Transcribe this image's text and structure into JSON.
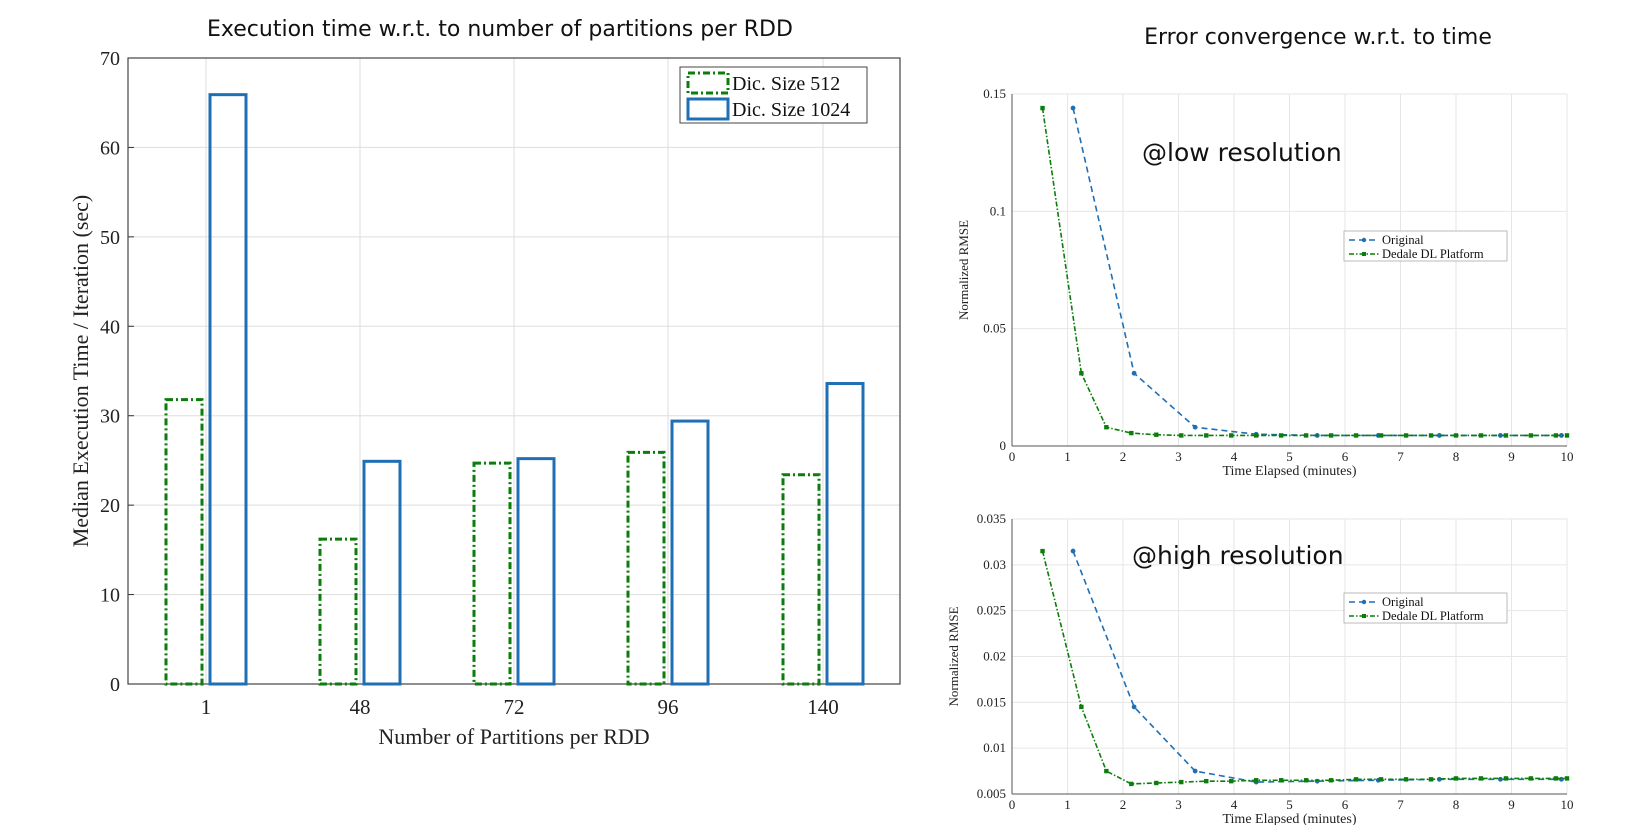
{
  "panel_titles": {
    "left": "Execution time w.r.t. to number of partitions per RDD",
    "right": "Error convergence w.r.t. to time"
  },
  "colors": {
    "green": "#0a7d0a",
    "blue": "#1f6fb5",
    "grid": "#dddddd"
  },
  "chart_data": [
    {
      "type": "bar",
      "title": "Execution time w.r.t. to number of partitions per RDD",
      "xlabel": "Number of Partitions per RDD",
      "ylabel": "Median Execution Time / Iteration (sec)",
      "categories": [
        "1",
        "48",
        "72",
        "96",
        "140"
      ],
      "series": [
        {
          "name": "Dic. Size 512",
          "values": [
            31.8,
            16.2,
            24.7,
            25.9,
            23.4
          ]
        },
        {
          "name": "Dic. Size 1024",
          "values": [
            65.9,
            24.9,
            25.2,
            29.4,
            33.6
          ]
        }
      ],
      "ylim": [
        0,
        70
      ],
      "yticks": [
        0,
        10,
        20,
        30,
        40,
        50,
        60,
        70
      ],
      "grid": true,
      "legend": "top-right"
    },
    {
      "type": "line",
      "annotation": "@low resolution",
      "xlabel": "Time Elapsed (minutes)",
      "ylabel": "Normalized RMSE",
      "xlim": [
        0,
        10
      ],
      "ylim": [
        0,
        0.15
      ],
      "xticks": [
        0,
        1,
        2,
        3,
        4,
        5,
        6,
        7,
        8,
        9,
        10
      ],
      "yticks": [
        0,
        0.05,
        0.1,
        0.15
      ],
      "ytick_labels": [
        "0",
        "0.05",
        "0.1",
        "0.15"
      ],
      "grid": true,
      "legend": "center-right",
      "series": [
        {
          "name": "Original",
          "x": [
            1.1,
            2.2,
            3.3,
            4.4,
            5.5,
            6.6,
            7.7,
            8.8,
            9.9
          ],
          "y": [
            0.144,
            0.031,
            0.008,
            0.005,
            0.0045,
            0.0045,
            0.0045,
            0.0045,
            0.0045
          ]
        },
        {
          "name": "Dedale DL Platform",
          "x": [
            0.55,
            1.25,
            1.7,
            2.15,
            2.6,
            3.05,
            3.5,
            3.95,
            4.4,
            4.85,
            5.3,
            5.75,
            6.2,
            6.65,
            7.1,
            7.55,
            8.0,
            8.45,
            8.9,
            9.35,
            9.8,
            10.0
          ],
          "y": [
            0.144,
            0.031,
            0.008,
            0.0055,
            0.0048,
            0.0045,
            0.0045,
            0.0045,
            0.0045,
            0.0045,
            0.0045,
            0.0045,
            0.0045,
            0.0045,
            0.0045,
            0.0045,
            0.0045,
            0.0045,
            0.0045,
            0.0045,
            0.0045,
            0.0045
          ]
        }
      ]
    },
    {
      "type": "line",
      "annotation": "@high resolution",
      "xlabel": "Time Elapsed (minutes)",
      "ylabel": "Normalized RMSE",
      "xlim": [
        0,
        10
      ],
      "ylim": [
        0.005,
        0.035
      ],
      "xticks": [
        0,
        1,
        2,
        3,
        4,
        5,
        6,
        7,
        8,
        9,
        10
      ],
      "yticks": [
        0.005,
        0.01,
        0.015,
        0.02,
        0.025,
        0.03,
        0.035
      ],
      "ytick_labels": [
        "0.005",
        "0.01",
        "0.015",
        "0.02",
        "0.025",
        "0.03",
        "0.035"
      ],
      "grid": true,
      "legend": "top-right",
      "series": [
        {
          "name": "Original",
          "x": [
            1.1,
            2.2,
            3.3,
            4.4,
            5.5,
            6.6,
            7.7,
            8.8,
            9.9
          ],
          "y": [
            0.0315,
            0.0145,
            0.0075,
            0.0063,
            0.0064,
            0.0065,
            0.0066,
            0.0066,
            0.0066
          ]
        },
        {
          "name": "Dedale DL Platform",
          "x": [
            0.55,
            1.25,
            1.7,
            2.15,
            2.6,
            3.05,
            3.5,
            3.95,
            4.4,
            4.85,
            5.3,
            5.75,
            6.2,
            6.65,
            7.1,
            7.55,
            8.0,
            8.45,
            8.9,
            9.35,
            9.8,
            10.0
          ],
          "y": [
            0.0315,
            0.0145,
            0.0075,
            0.0061,
            0.0062,
            0.0063,
            0.0064,
            0.0064,
            0.0065,
            0.0065,
            0.0065,
            0.0065,
            0.0066,
            0.0066,
            0.0066,
            0.0066,
            0.0067,
            0.0067,
            0.0067,
            0.0067,
            0.0067,
            0.0067
          ]
        }
      ]
    }
  ]
}
